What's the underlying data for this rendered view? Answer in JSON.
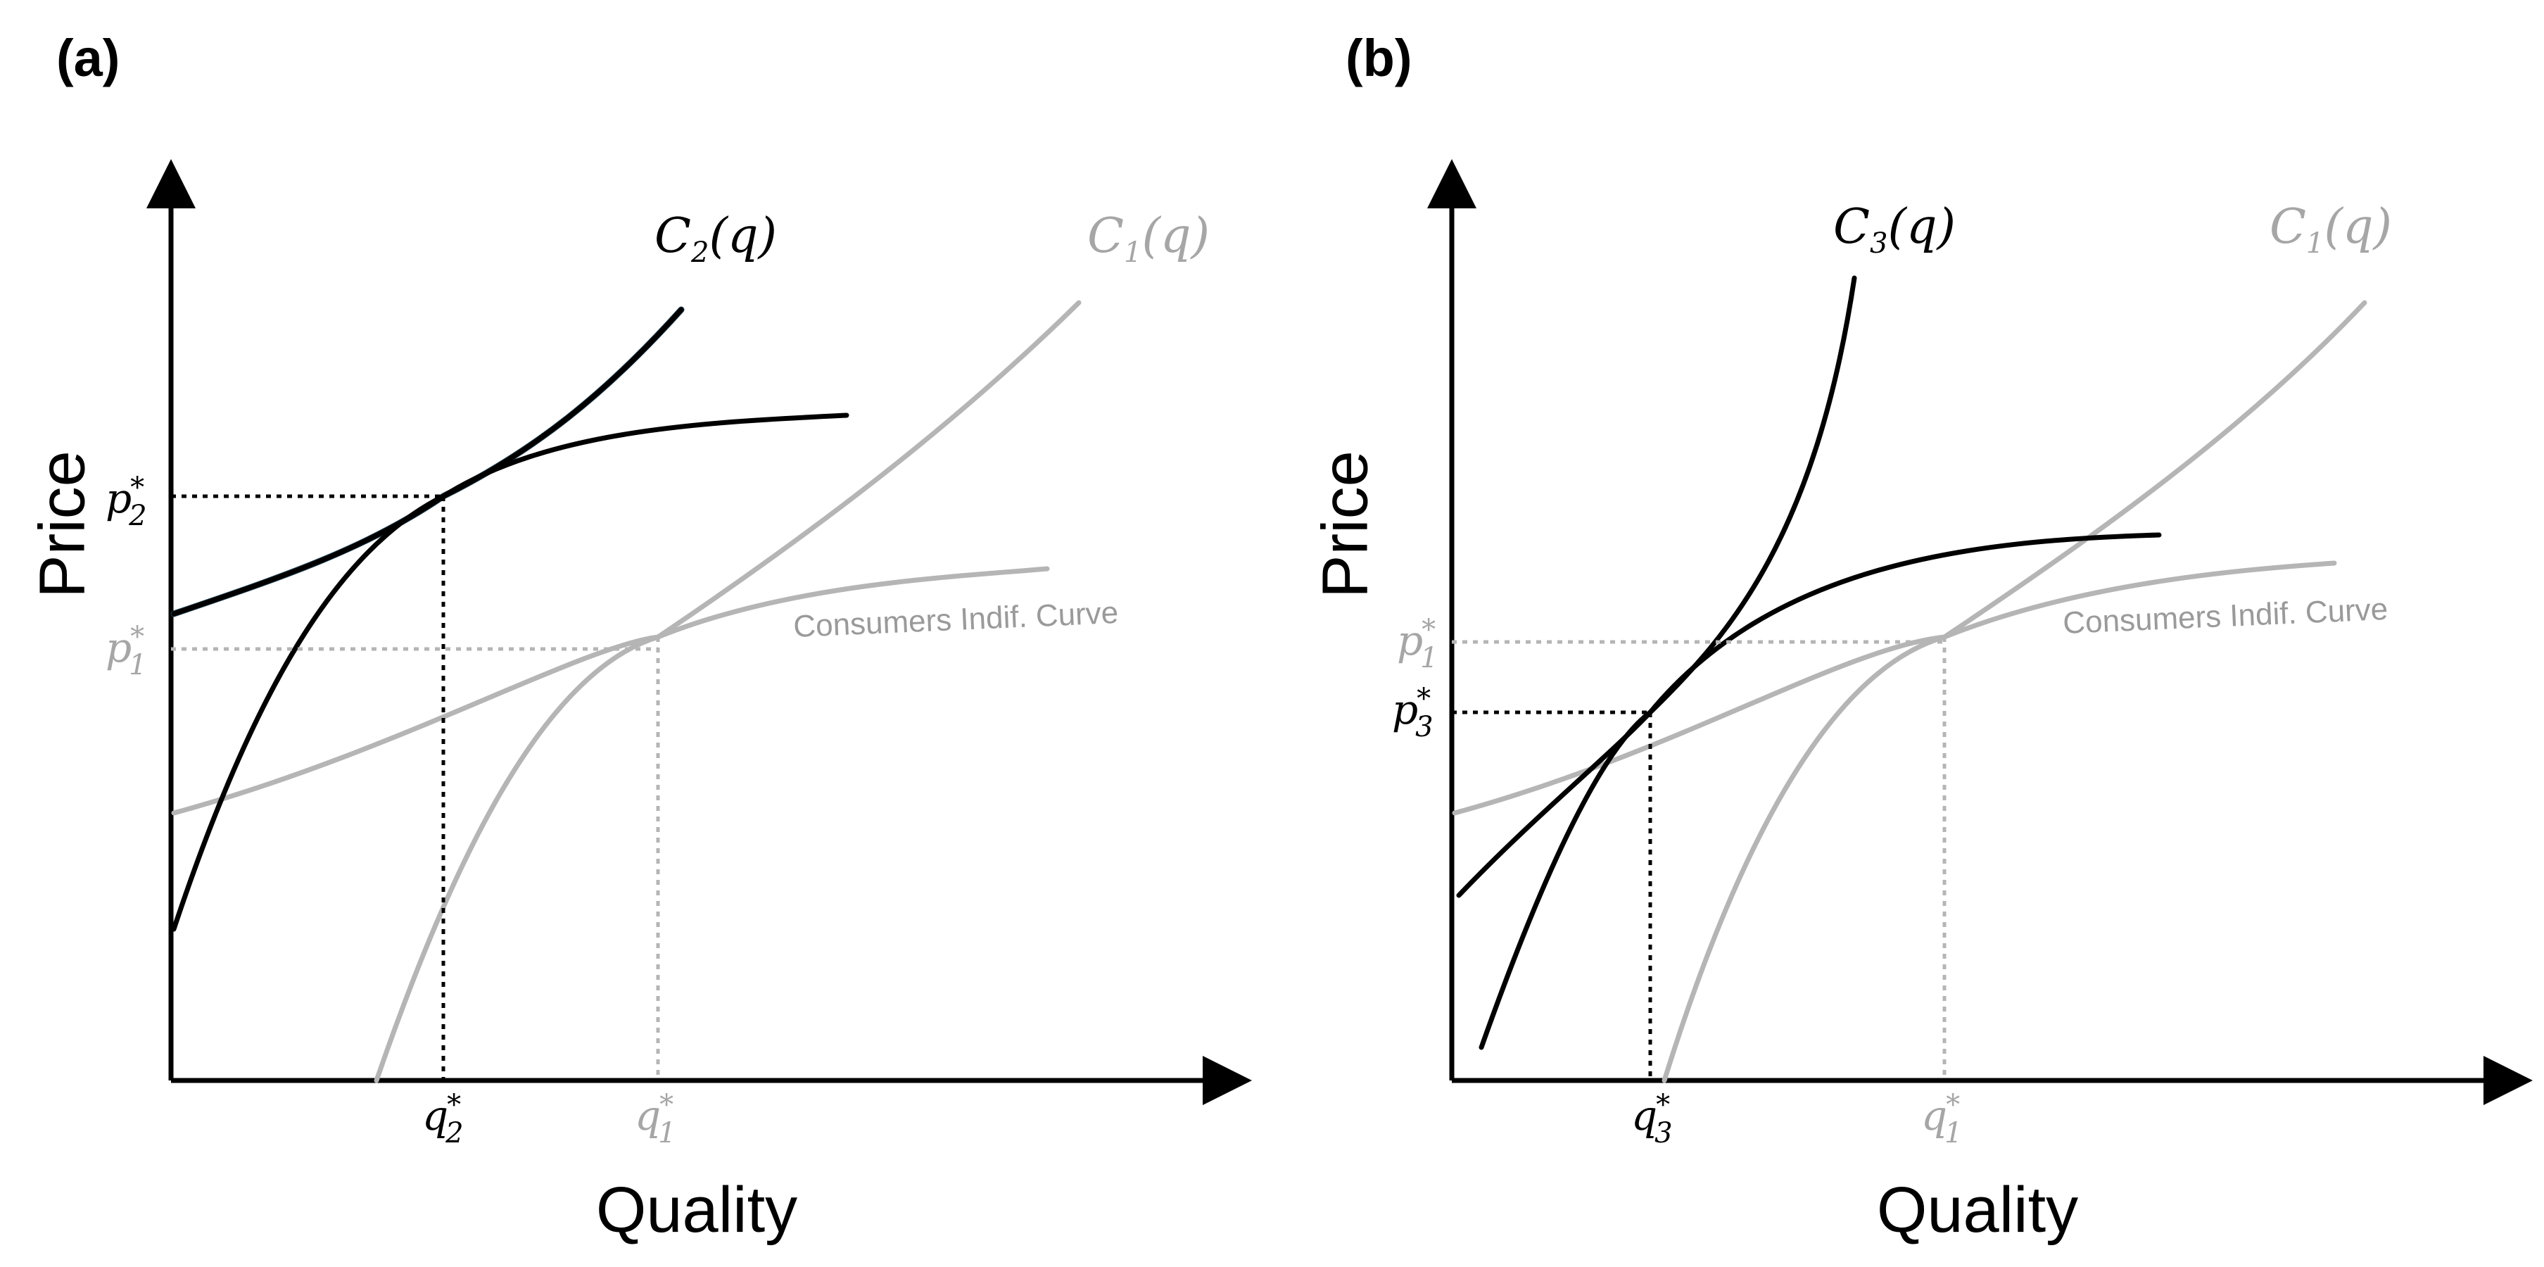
{
  "panels": [
    {
      "label": "(a)",
      "x_axis_title": "Quality",
      "y_axis_title": "Price",
      "competitor_curve": {
        "func": "C",
        "sub": "2",
        "arg": "(q)"
      },
      "base_curve": {
        "func": "C",
        "sub": "1",
        "arg": "(q)"
      },
      "indifference_label": "Consumers Indif. Curve",
      "p_competitor": {
        "sym": "p",
        "sub": "2",
        "sup": "*"
      },
      "p_base": {
        "sym": "p",
        "sub": "1",
        "sup": "*"
      },
      "q_competitor": {
        "sym": "q",
        "sub": "2",
        "sup": "*"
      },
      "q_base": {
        "sym": "q",
        "sub": "1",
        "sup": "*"
      }
    },
    {
      "label": "(b)",
      "x_axis_title": "Quality",
      "y_axis_title": "Price",
      "competitor_curve": {
        "func": "C",
        "sub": "3",
        "arg": "(q)"
      },
      "base_curve": {
        "func": "C",
        "sub": "1",
        "arg": "(q)"
      },
      "indifference_label": "Consumers Indif. Curve",
      "p_competitor": {
        "sym": "p",
        "sub": "3",
        "sup": "*"
      },
      "p_base": {
        "sym": "p",
        "sub": "1",
        "sup": "*"
      },
      "q_competitor": {
        "sym": "q",
        "sub": "3",
        "sup": "*"
      },
      "q_base": {
        "sym": "q",
        "sub": "1",
        "sup": "*"
      }
    }
  ],
  "colors": {
    "dark": "#000000",
    "gray": "#b5b5b5",
    "navy_edge": "#1d3a4a"
  }
}
